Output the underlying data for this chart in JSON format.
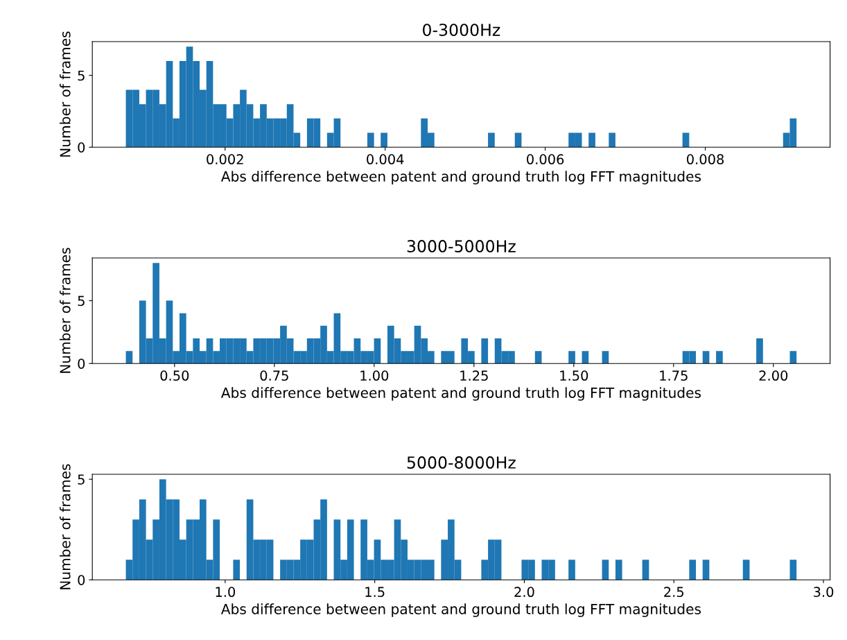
{
  "chart_data": [
    {
      "type": "histogram",
      "title": "0-3000Hz",
      "xlabel": "Abs difference between patent and ground truth log FFT magnitudes",
      "ylabel": "Number of frames",
      "color": "#1f77b4",
      "bins": [
        0.00076,
        0.000844,
        0.000928,
        0.001011,
        0.001095,
        0.001179,
        0.001263,
        0.001347,
        0.00143,
        0.001514,
        0.001598,
        0.001682,
        0.001766,
        0.001849,
        0.001933,
        0.002017,
        0.002101,
        0.002185,
        0.002268,
        0.002352,
        0.002436,
        0.00252,
        0.002604,
        0.002687,
        0.002771,
        0.002855,
        0.002939,
        0.003023,
        0.003106,
        0.00319,
        0.003274,
        0.003358,
        0.003442,
        0.003777,
        0.003861,
        0.003944,
        0.004028,
        0.004447,
        0.004531,
        0.004615,
        0.005285,
        0.005369,
        0.00562,
        0.005704,
        0.006291,
        0.006375,
        0.006458,
        0.006542,
        0.006626,
        0.006794,
        0.006877,
        0.007715,
        0.007799,
        0.008972,
        0.009056,
        0.00914
      ],
      "values": [
        4,
        4,
        3,
        4,
        4,
        3,
        6,
        2,
        6,
        7,
        6,
        4,
        6,
        3,
        3,
        2,
        3,
        4,
        3,
        2,
        3,
        2,
        2,
        2,
        3,
        1,
        0,
        2,
        2,
        0,
        1,
        2,
        0,
        1,
        0,
        1,
        0,
        2,
        1,
        0,
        1,
        0,
        1,
        0,
        1,
        1,
        0,
        1,
        0,
        1,
        0,
        1,
        0,
        1,
        2
      ],
      "xlim": [
        0.000341,
        0.009559
      ],
      "xticks": [
        0.002,
        0.004,
        0.006,
        0.008
      ],
      "ylim": [
        0,
        7.35
      ],
      "yticks": [
        0,
        5
      ]
    },
    {
      "type": "histogram",
      "title": "3000-5000Hz",
      "xlabel": "Abs difference between patent and ground truth log FFT magnitudes",
      "ylabel": "Number of frames",
      "color": "#1f77b4",
      "bins": [
        0.378,
        0.3948,
        0.4116,
        0.4284,
        0.4452,
        0.462,
        0.4788,
        0.4956,
        0.5124,
        0.5292,
        0.546,
        0.5628,
        0.5796,
        0.5964,
        0.6132,
        0.63,
        0.6468,
        0.6636,
        0.6804,
        0.6972,
        0.714,
        0.7308,
        0.7476,
        0.7644,
        0.7812,
        0.798,
        0.8148,
        0.8316,
        0.8484,
        0.8652,
        0.882,
        0.8988,
        0.9156,
        0.9324,
        0.9492,
        0.966,
        0.9828,
        0.9996,
        1.0164,
        1.0332,
        1.05,
        1.0668,
        1.0836,
        1.1004,
        1.1172,
        1.134,
        1.1508,
        1.1676,
        1.1844,
        1.2012,
        1.218,
        1.2348,
        1.2516,
        1.2684,
        1.2852,
        1.302,
        1.3188,
        1.3356,
        1.3524,
        1.4028,
        1.4196,
        1.4868,
        1.5036,
        1.5204,
        1.5372,
        1.5708,
        1.5876,
        1.7724,
        1.7892,
        1.806,
        1.8228,
        1.8396,
        1.8564,
        1.8732,
        1.9572,
        1.974,
        2.0412,
        2.058
      ],
      "values": [
        1,
        0,
        5,
        2,
        8,
        2,
        5,
        1,
        4,
        1,
        2,
        1,
        2,
        1,
        2,
        2,
        2,
        2,
        1,
        2,
        2,
        2,
        2,
        3,
        2,
        1,
        1,
        2,
        2,
        3,
        1,
        4,
        1,
        1,
        2,
        1,
        1,
        2,
        0,
        3,
        2,
        1,
        1,
        3,
        2,
        1,
        0,
        1,
        1,
        0,
        2,
        1,
        0,
        2,
        0,
        2,
        1,
        1,
        0,
        1,
        0,
        1,
        0,
        1,
        0,
        1,
        0,
        1,
        1,
        0,
        1,
        0,
        1,
        0,
        2,
        0,
        1
      ],
      "xlim": [
        0.294,
        2.142
      ],
      "xticks": [
        {
          "value": 0.5,
          "label": "0.50"
        },
        {
          "value": 0.75,
          "label": "0.75"
        },
        {
          "value": 1.0,
          "label": "1.00"
        },
        {
          "value": 1.25,
          "label": "1.25"
        },
        {
          "value": 1.5,
          "label": "1.50"
        },
        {
          "value": 1.75,
          "label": "1.75"
        },
        {
          "value": 2.0,
          "label": "2.00"
        }
      ],
      "ylim": [
        0,
        8.4
      ],
      "yticks": [
        0,
        5
      ]
    },
    {
      "type": "histogram",
      "title": "5000-8000Hz",
      "xlabel": "Abs difference between patent and ground truth log FFT magnitudes",
      "ylabel": "Number of frames",
      "color": "#1f77b4",
      "bins": [
        0.668,
        0.6904,
        0.7128,
        0.7353,
        0.7577,
        0.7801,
        0.8025,
        0.8249,
        0.8474,
        0.8698,
        0.8922,
        0.9146,
        0.937,
        0.9595,
        0.9819,
        1.0267,
        1.0491,
        1.0716,
        1.094,
        1.1164,
        1.1388,
        1.1612,
        1.1837,
        1.2061,
        1.2285,
        1.2509,
        1.2733,
        1.2958,
        1.3182,
        1.3406,
        1.363,
        1.3854,
        1.4079,
        1.4303,
        1.4527,
        1.4751,
        1.4975,
        1.52,
        1.5424,
        1.5648,
        1.5872,
        1.6096,
        1.6321,
        1.6545,
        1.6769,
        1.6993,
        1.7217,
        1.7442,
        1.7666,
        1.789,
        1.8563,
        1.8787,
        1.9011,
        1.9235,
        1.9908,
        2.0132,
        2.0356,
        2.058,
        2.0805,
        2.1029,
        2.1477,
        2.1701,
        2.2598,
        2.2822,
        2.3047,
        2.3271,
        2.3943,
        2.4168,
        2.5513,
        2.5737,
        2.5961,
        2.6185,
        2.7306,
        2.7531,
        2.8876,
        2.91
      ],
      "values": [
        1,
        3,
        4,
        2,
        3,
        5,
        4,
        4,
        2,
        3,
        3,
        4,
        1,
        3,
        0,
        1,
        0,
        4,
        2,
        2,
        2,
        0,
        1,
        1,
        1,
        2,
        2,
        3,
        4,
        0,
        3,
        1,
        3,
        0,
        3,
        1,
        2,
        1,
        1,
        3,
        2,
        1,
        1,
        1,
        1,
        0,
        2,
        3,
        1,
        0,
        1,
        2,
        2,
        0,
        1,
        1,
        0,
        1,
        1,
        0,
        1,
        0,
        1,
        0,
        1,
        0,
        1,
        0,
        1,
        0,
        1,
        0,
        1,
        0,
        1
      ],
      "xlim": [
        0.5559,
        3.0221
      ],
      "xticks": [
        {
          "value": 1.0,
          "label": "1.0"
        },
        1.5,
        {
          "value": 2.0,
          "label": "2.0"
        },
        2.5,
        {
          "value": 3.0,
          "label": "3.0"
        }
      ],
      "ylim": [
        0,
        5.25
      ],
      "yticks": [
        0,
        5
      ]
    }
  ]
}
